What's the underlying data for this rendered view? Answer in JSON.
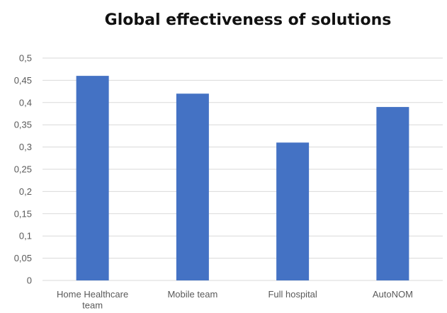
{
  "chart_data": {
    "type": "bar",
    "title": "Global effectiveness of solutions",
    "categories": [
      "Home Healthcare team",
      "Mobile team",
      "Full hospital",
      "AutoNOM"
    ],
    "values": [
      0.46,
      0.42,
      0.31,
      0.39
    ],
    "y_ticks": [
      "0",
      "0,05",
      "0,1",
      "0,15",
      "0,2",
      "0,25",
      "0,3",
      "0,35",
      "0,4",
      "0,45",
      "0,5"
    ],
    "ylim": [
      0,
      0.5
    ],
    "grid": true,
    "legend": "none",
    "bar_color": "#4472C4",
    "grid_color": "#D9D9D9"
  }
}
